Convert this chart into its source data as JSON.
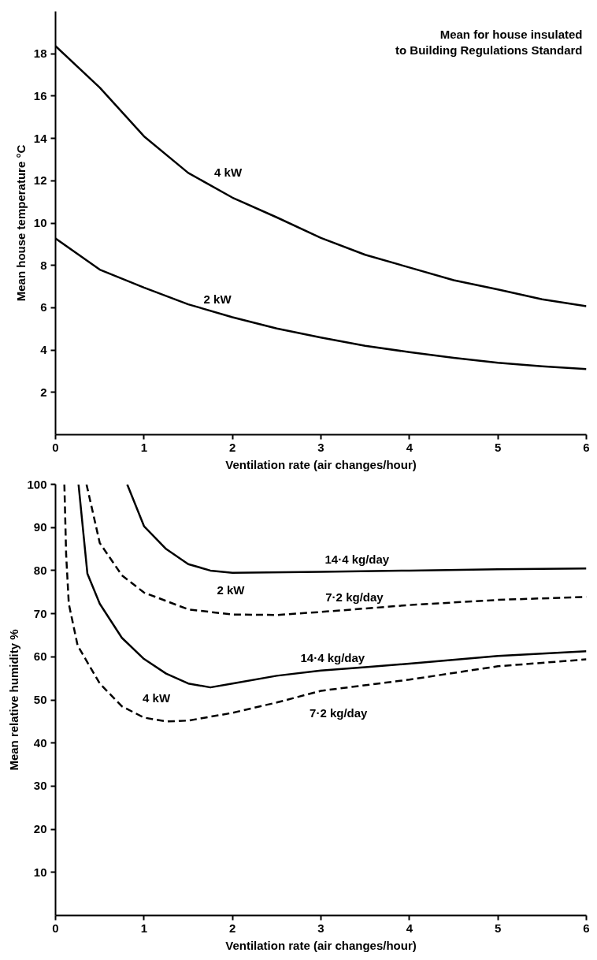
{
  "chart_data": [
    {
      "type": "line",
      "xlabel": "Ventilation rate (air changes/hour)",
      "ylabel": "Mean house temperature °C",
      "xlim": [
        0,
        6
      ],
      "ylim": [
        0,
        20
      ],
      "xticks": [
        0,
        1,
        2,
        3,
        4,
        5,
        6
      ],
      "yticks": [
        2,
        4,
        6,
        8,
        10,
        12,
        14,
        16,
        18
      ],
      "grid": false,
      "line_style": "solid",
      "x": [
        0,
        0.5,
        1,
        1.5,
        2,
        2.5,
        3,
        3.5,
        4,
        4.5,
        5,
        5.5,
        6
      ],
      "series": [
        {
          "color": "#000000",
          "values": [
            18.36,
            16.4,
            14.1,
            12.37,
            11.2,
            10.27,
            9.3,
            8.5,
            7.9,
            7.3,
            6.86,
            6.4,
            6.07
          ]
        },
        {
          "color": "#000000",
          "values": [
            9.27,
            7.8,
            6.95,
            6.16,
            5.55,
            5.02,
            4.59,
            4.2,
            3.9,
            3.63,
            3.4,
            3.23,
            3.1
          ]
        }
      ],
      "annotations": [
        "Mean for house insulated\nto Building Regulations Standard",
        "4 kW",
        "2 kW"
      ]
    },
    {
      "type": "line",
      "xlabel": "Ventilation rate (air changes/hour)",
      "ylabel": "Mean relative humidity %",
      "xlim": [
        0,
        6
      ],
      "ylim": [
        0,
        100
      ],
      "xticks": [
        0,
        1,
        2,
        3,
        4,
        5,
        6
      ],
      "yticks": [
        10,
        20,
        30,
        40,
        50,
        60,
        70,
        80,
        90,
        100
      ],
      "grid": false,
      "series": [
        {
          "color": "#000000",
          "line_style": "solid",
          "x": [
            0.81,
            1,
            1.25,
            1.5,
            1.75,
            2,
            3,
            4,
            5,
            6
          ],
          "values": [
            100,
            90.3,
            85,
            81.5,
            80,
            79.5,
            79.7,
            80,
            80.3,
            80.5
          ]
        },
        {
          "color": "#000000",
          "line_style": "dashed",
          "x": [
            0.35,
            0.5,
            0.75,
            1,
            1.5,
            2,
            2.5,
            3,
            4,
            5,
            6
          ],
          "values": [
            100,
            86.4,
            78.9,
            74.9,
            71,
            69.8,
            69.7,
            70.4,
            72,
            73.2,
            73.9
          ]
        },
        {
          "color": "#000000",
          "line_style": "solid",
          "x": [
            0.26,
            0.36,
            0.5,
            0.75,
            1,
            1.25,
            1.5,
            1.75,
            2,
            2.5,
            3,
            3.5,
            4,
            5,
            6
          ],
          "values": [
            100,
            79.3,
            72.3,
            64.4,
            59.5,
            56.1,
            53.8,
            52.9,
            53.8,
            55.6,
            56.8,
            57.6,
            58.4,
            60.2,
            61.3
          ]
        },
        {
          "color": "#000000",
          "line_style": "dashed",
          "x": [
            0.1,
            0.12,
            0.15,
            0.25,
            0.5,
            0.75,
            1,
            1.25,
            1.5,
            2,
            2.5,
            3,
            4,
            5,
            6
          ],
          "values": [
            100,
            83.7,
            72.3,
            62.6,
            53.8,
            48.5,
            45.9,
            45,
            45.2,
            47,
            49.4,
            52.1,
            54.7,
            57.8,
            59.4
          ]
        }
      ],
      "annotations": [
        "14·4 kg/day",
        "2 kW",
        "7·2 kg/day",
        "14·4 kg/day",
        "4 kW",
        "7·2 kg/day"
      ]
    }
  ]
}
